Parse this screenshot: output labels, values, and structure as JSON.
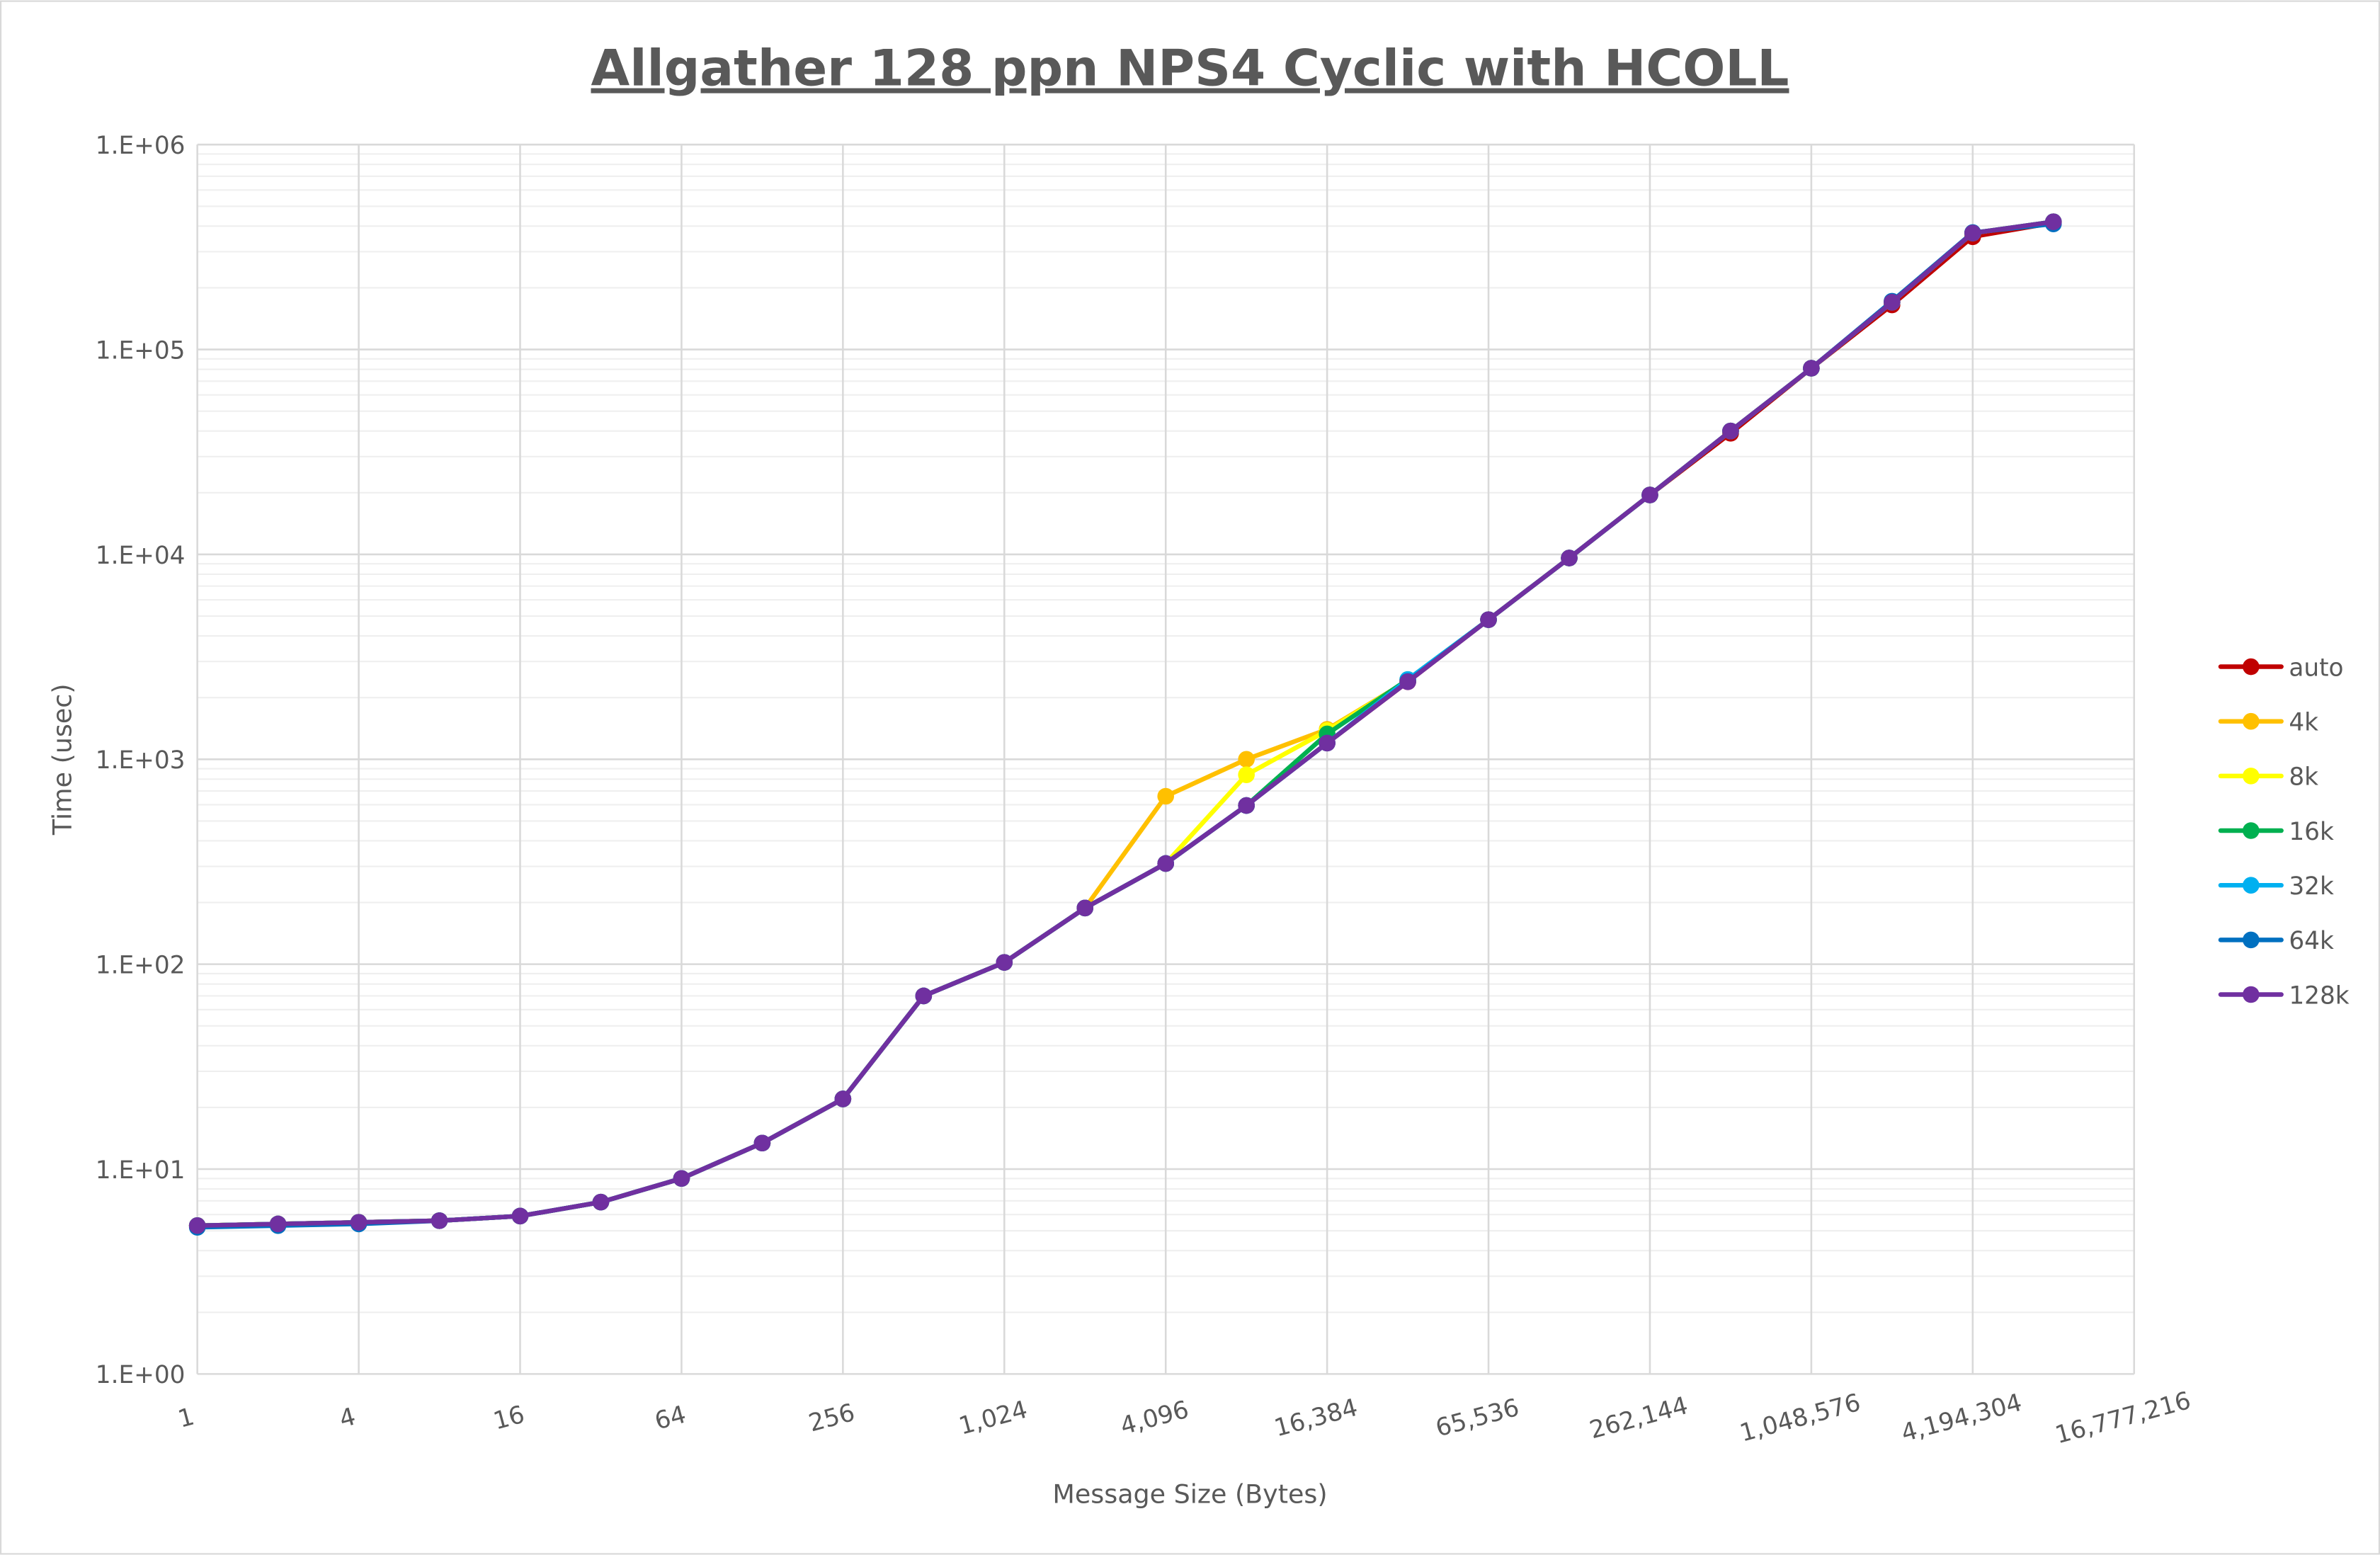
{
  "chart_data": {
    "type": "line",
    "title": "Allgather 128 ppn NPS4 Cyclic with HCOLL",
    "xlabel": "Message Size (Bytes)",
    "ylabel": "Time (usec)",
    "x_scale": "log2",
    "y_scale": "log10",
    "xlim": [
      1,
      16777216
    ],
    "ylim": [
      1,
      1000000
    ],
    "grid": true,
    "legend_position": "right",
    "x_tick_labels": [
      "1",
      "4",
      "16",
      "64",
      "256",
      "1,024",
      "4,096",
      "16,384",
      "65,536",
      "262,144",
      "1,048,576",
      "4,194,304",
      "16,777,216"
    ],
    "y_tick_labels": [
      "1.E+00",
      "1.E+01",
      "1.E+02",
      "1.E+03",
      "1.E+04",
      "1.E+05",
      "1.E+06"
    ],
    "x": [
      1,
      2,
      4,
      8,
      16,
      32,
      64,
      128,
      256,
      512,
      1024,
      2048,
      4096,
      8192,
      16384,
      32768,
      65536,
      131072,
      262144,
      524288,
      1048576,
      2097152,
      4194304,
      8388608
    ],
    "series": [
      {
        "name": "auto",
        "color": "#C00000",
        "values": [
          5.3,
          5.4,
          5.5,
          5.6,
          5.9,
          6.9,
          9.0,
          13.4,
          22,
          70,
          102,
          188,
          310,
          595,
          1200,
          2390,
          4800,
          9600,
          19500,
          39000,
          81000,
          165000,
          355000,
          415000
        ]
      },
      {
        "name": "4k",
        "color": "#FFC000",
        "values": [
          5.3,
          5.4,
          5.5,
          5.6,
          5.9,
          6.9,
          9.0,
          13.4,
          22,
          70,
          102,
          188,
          660,
          1000,
          1400,
          2420,
          4800,
          9600,
          19500,
          40000,
          81000,
          170000,
          370000,
          420000
        ]
      },
      {
        "name": "8k",
        "color": "#FFFF00",
        "values": [
          5.3,
          5.4,
          5.5,
          5.6,
          5.9,
          6.9,
          9.0,
          13.4,
          22,
          70,
          102,
          188,
          310,
          840,
          1380,
          2420,
          4800,
          9600,
          19500,
          40000,
          81000,
          170000,
          370000,
          420000
        ]
      },
      {
        "name": "16k",
        "color": "#00B050",
        "values": [
          5.3,
          5.4,
          5.5,
          5.6,
          5.9,
          6.9,
          9.0,
          13.4,
          22,
          70,
          102,
          188,
          310,
          595,
          1330,
          2450,
          4800,
          9600,
          19500,
          40000,
          81000,
          170000,
          370000,
          420000
        ]
      },
      {
        "name": "32k",
        "color": "#00B0F0",
        "values": [
          5.3,
          5.4,
          5.5,
          5.6,
          5.9,
          6.9,
          9.0,
          13.4,
          22,
          70,
          102,
          188,
          310,
          595,
          1200,
          2450,
          4800,
          9600,
          19500,
          40000,
          81000,
          170000,
          370000,
          420000
        ]
      },
      {
        "name": "64k",
        "color": "#0070C0",
        "values": [
          5.2,
          5.3,
          5.4,
          5.6,
          5.9,
          6.9,
          9.0,
          13.4,
          22,
          70,
          102,
          188,
          310,
          595,
          1200,
          2400,
          4800,
          9600,
          19500,
          40000,
          81000,
          172000,
          372000,
          410000
        ]
      },
      {
        "name": "128k",
        "color": "#7030A0",
        "values": [
          5.3,
          5.4,
          5.5,
          5.6,
          5.9,
          6.9,
          9.0,
          13.4,
          22,
          70,
          102,
          188,
          310,
          595,
          1200,
          2390,
          4800,
          9600,
          19500,
          40000,
          81000,
          170000,
          370000,
          420000
        ]
      }
    ]
  }
}
